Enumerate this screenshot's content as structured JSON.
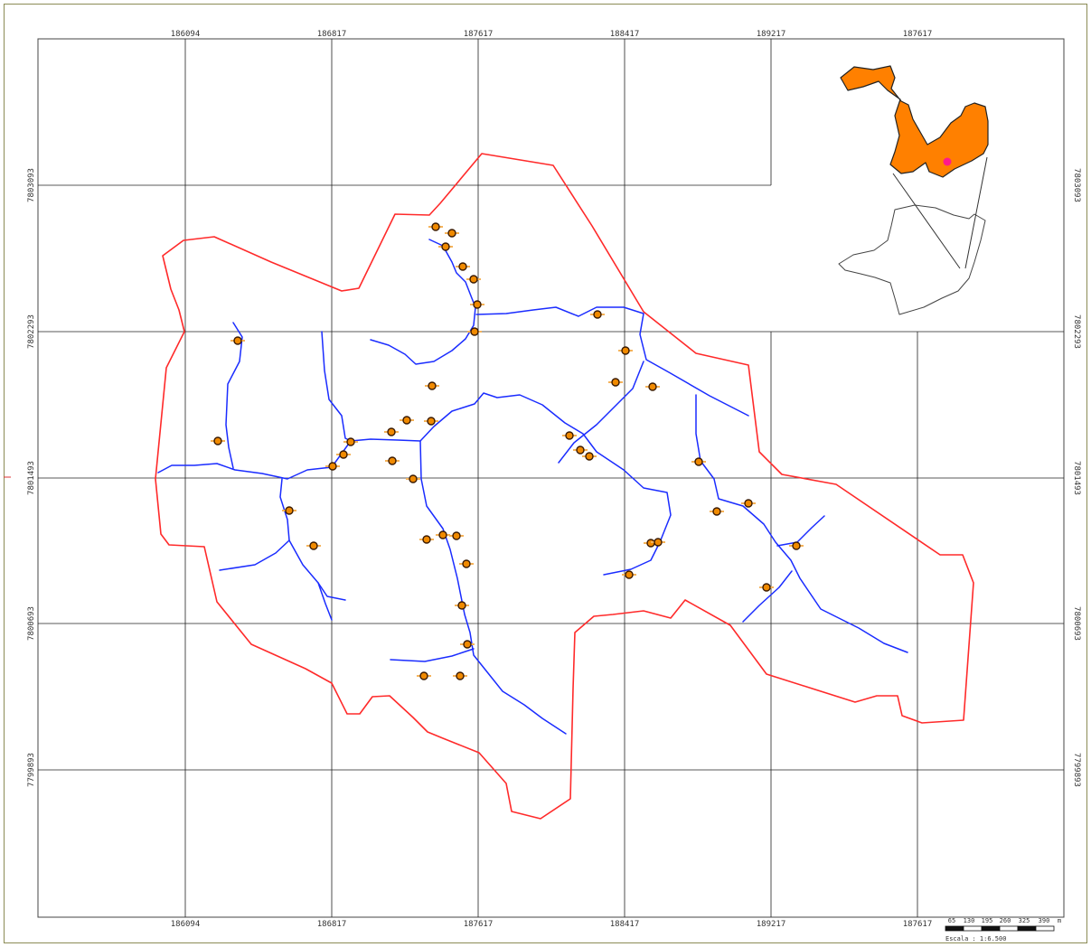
{
  "map": {
    "top_x_labels": [
      "186094",
      "186817",
      "187617",
      "188417",
      "189217",
      "187617"
    ],
    "bottom_x_labels": [
      "186094",
      "186817",
      "187617",
      "188417",
      "189217",
      "187617"
    ],
    "y_labels": [
      "7803093",
      "7802293",
      "7801493",
      "7800693",
      "7799893"
    ]
  },
  "scale": {
    "ticks": [
      "65",
      "130",
      "195",
      "260",
      "325",
      "390"
    ],
    "unit": "m",
    "caption": "Escala : 1:6.500"
  },
  "colors": {
    "boundary": "#ff2a2a",
    "rivers": "#1a2cff",
    "points_fill": "#f08a00",
    "inset_fill": "#ff8000",
    "inset_highlight": "#ff1a8c"
  }
}
